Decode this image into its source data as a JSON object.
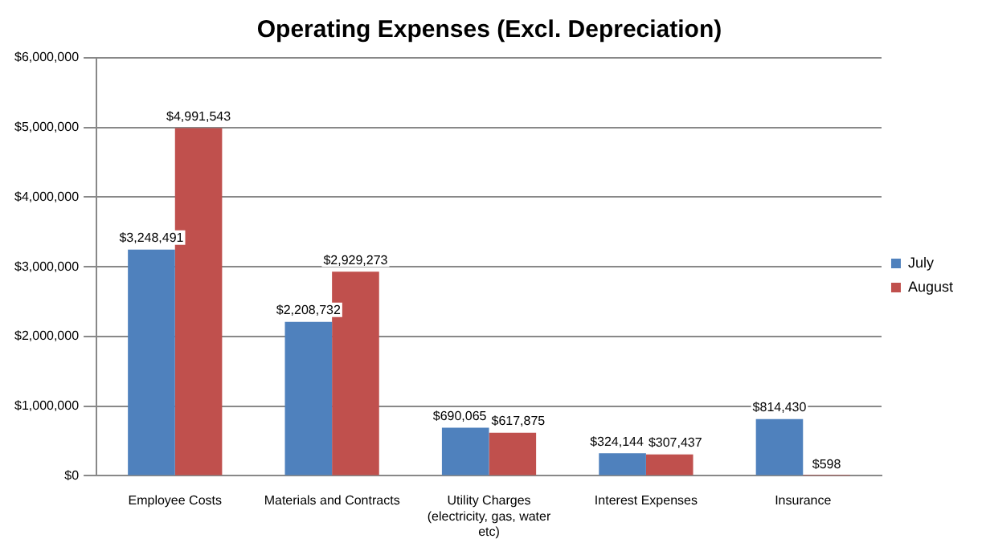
{
  "chart_data": {
    "type": "bar",
    "title": "Operating Expenses (Excl. Depreciation)",
    "categories": [
      "Employee Costs",
      "Materials and Contracts",
      "Utility Charges (electricity, gas, water etc)",
      "Interest Expenses",
      "Insurance"
    ],
    "series": [
      {
        "name": "July",
        "color": "#4f81bd",
        "values": [
          3248491,
          2208732,
          690065,
          324144,
          814430
        ],
        "value_labels": [
          "$3,248,491",
          "$2,208,732",
          "$690,065",
          "$324,144",
          "$814,430"
        ]
      },
      {
        "name": "August",
        "color": "#c0504d",
        "values": [
          4991543,
          2929273,
          617875,
          307437,
          598
        ],
        "value_labels": [
          "$4,991,543",
          "$2,929,273",
          "$617,875",
          "$307,437",
          "$598"
        ]
      }
    ],
    "ylim": [
      0,
      6000000
    ],
    "yticks": [
      {
        "value": 0,
        "label": "$0"
      },
      {
        "value": 1000000,
        "label": "$1,000,000"
      },
      {
        "value": 2000000,
        "label": "$2,000,000"
      },
      {
        "value": 3000000,
        "label": "$3,000,000"
      },
      {
        "value": 4000000,
        "label": "$4,000,000"
      },
      {
        "value": 5000000,
        "label": "$5,000,000"
      },
      {
        "value": 6000000,
        "label": "$6,000,000"
      }
    ],
    "grid": "y",
    "legend": "right"
  }
}
